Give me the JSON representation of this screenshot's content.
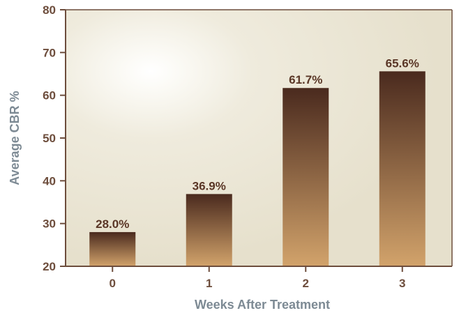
{
  "chart_data": {
    "type": "bar",
    "title": "",
    "xlabel": "Weeks After Treatment",
    "ylabel": "Average CBR %",
    "categories": [
      "0",
      "1",
      "2",
      "3"
    ],
    "values": [
      28.0,
      36.9,
      61.7,
      65.6
    ],
    "data_labels": [
      "28.0%",
      "36.9%",
      "61.7%",
      "65.6%"
    ],
    "ylim": [
      20,
      80
    ],
    "yticks": [
      20,
      30,
      40,
      50,
      60,
      70,
      80
    ],
    "grid": false,
    "legend": "none",
    "colors": {
      "plot_background": "#ece7d6",
      "bar_top": "#4a2a1e",
      "bar_bottom": "#d2a36b",
      "axis": "#6d4d3c",
      "axis_title": "#7d8a94",
      "data_label": "#5a3626"
    }
  }
}
